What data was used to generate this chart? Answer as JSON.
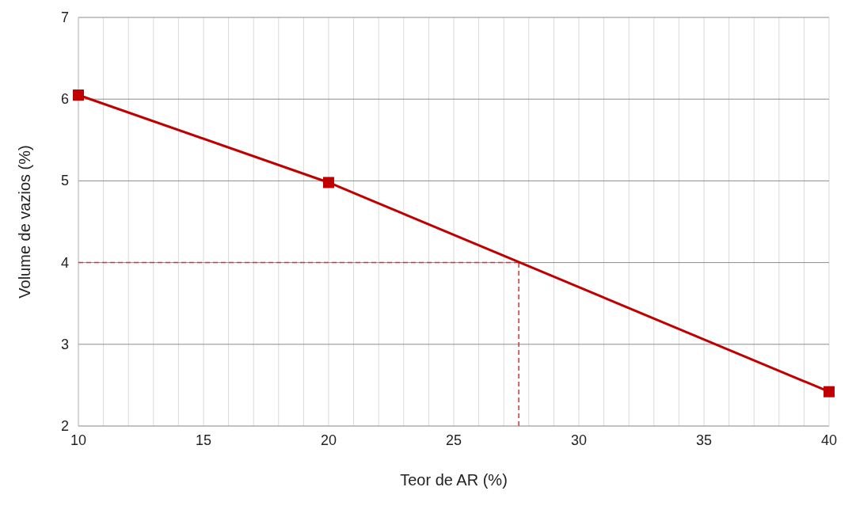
{
  "chart_data": {
    "type": "line",
    "xlabel": "Teor de AR (%)",
    "ylabel": "Volume de vazios (%)",
    "x": [
      10,
      20,
      40
    ],
    "series": [
      {
        "color": "#c00000",
        "values": [
          6.05,
          4.98,
          2.42
        ]
      }
    ],
    "xlim": [
      10,
      40
    ],
    "ylim": [
      2,
      7
    ],
    "xticks": [
      10,
      {
        "value": 11,
        "label": null
      },
      {
        "value": 12,
        "label": null
      },
      {
        "value": 13,
        "label": null
      },
      {
        "value": 14,
        "label": null
      },
      15,
      {
        "value": 16,
        "label": null
      },
      {
        "value": 17,
        "label": null
      },
      {
        "value": 18,
        "label": null
      },
      {
        "value": 19,
        "label": null
      },
      20,
      {
        "value": 21,
        "label": null
      },
      {
        "value": 22,
        "label": null
      },
      {
        "value": 23,
        "label": null
      },
      {
        "value": 24,
        "label": null
      },
      25,
      {
        "value": 26,
        "label": null
      },
      {
        "value": 27,
        "label": null
      },
      {
        "value": 28,
        "label": null
      },
      {
        "value": 29,
        "label": null
      },
      30,
      {
        "value": 31,
        "label": null
      },
      {
        "value": 32,
        "label": null
      },
      {
        "value": 33,
        "label": null
      },
      {
        "value": 34,
        "label": null
      },
      35,
      {
        "value": 36,
        "label": null
      },
      {
        "value": 37,
        "label": null
      },
      {
        "value": 38,
        "label": null
      },
      {
        "value": 39,
        "label": null
      },
      40
    ],
    "yticks": [
      2,
      3,
      4,
      5,
      6,
      7
    ],
    "grid": true,
    "marker": "square",
    "line_style": "solid",
    "ref_lines": [
      {
        "axis": "y",
        "value": 4,
        "color": "#e03030",
        "line_style": "dashed"
      },
      {
        "axis": "x",
        "value": 27.6,
        "color": "#e03030",
        "line_style": "dashed"
      }
    ]
  }
}
